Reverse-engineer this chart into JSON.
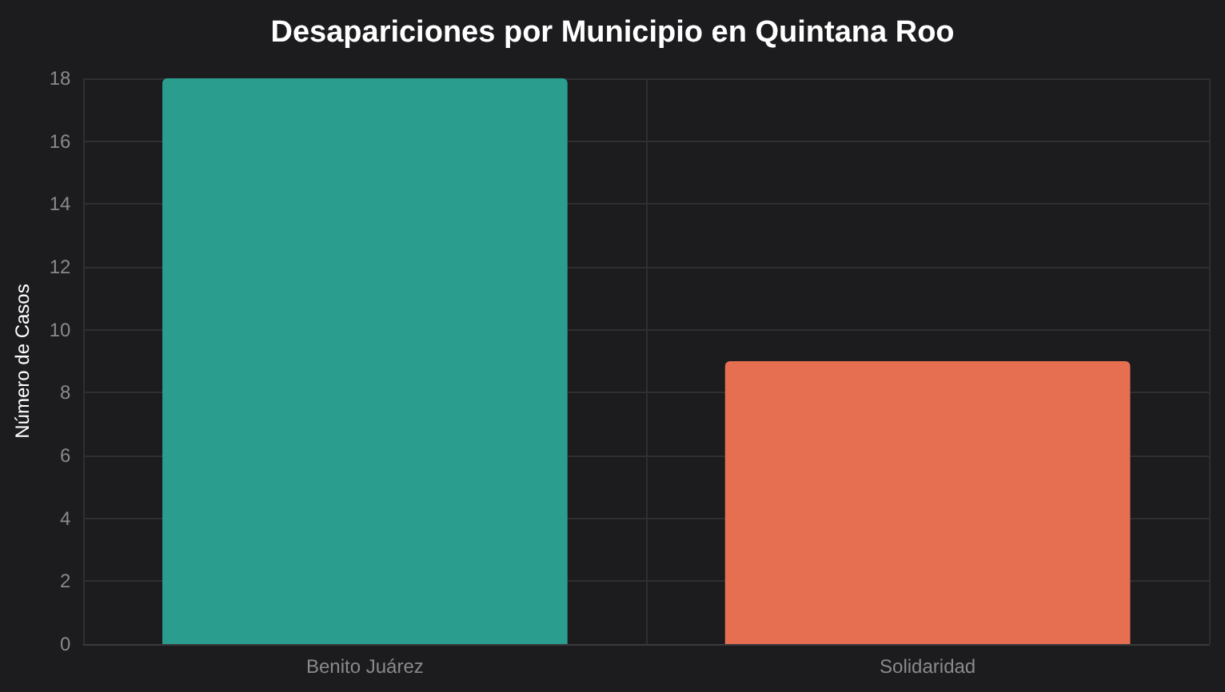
{
  "chart_data": {
    "type": "bar",
    "title": "Desapariciones por Municipio en Quintana Roo",
    "ylabel": "Número de Casos",
    "categories": [
      "Benito Juárez",
      "Solidaridad"
    ],
    "values": [
      18,
      9
    ],
    "colors": [
      "#2a9d8f",
      "#e76f51"
    ],
    "ylim": [
      0,
      18
    ],
    "yticks": [
      0,
      2,
      4,
      6,
      8,
      10,
      12,
      14,
      16,
      18
    ],
    "grid": true
  }
}
